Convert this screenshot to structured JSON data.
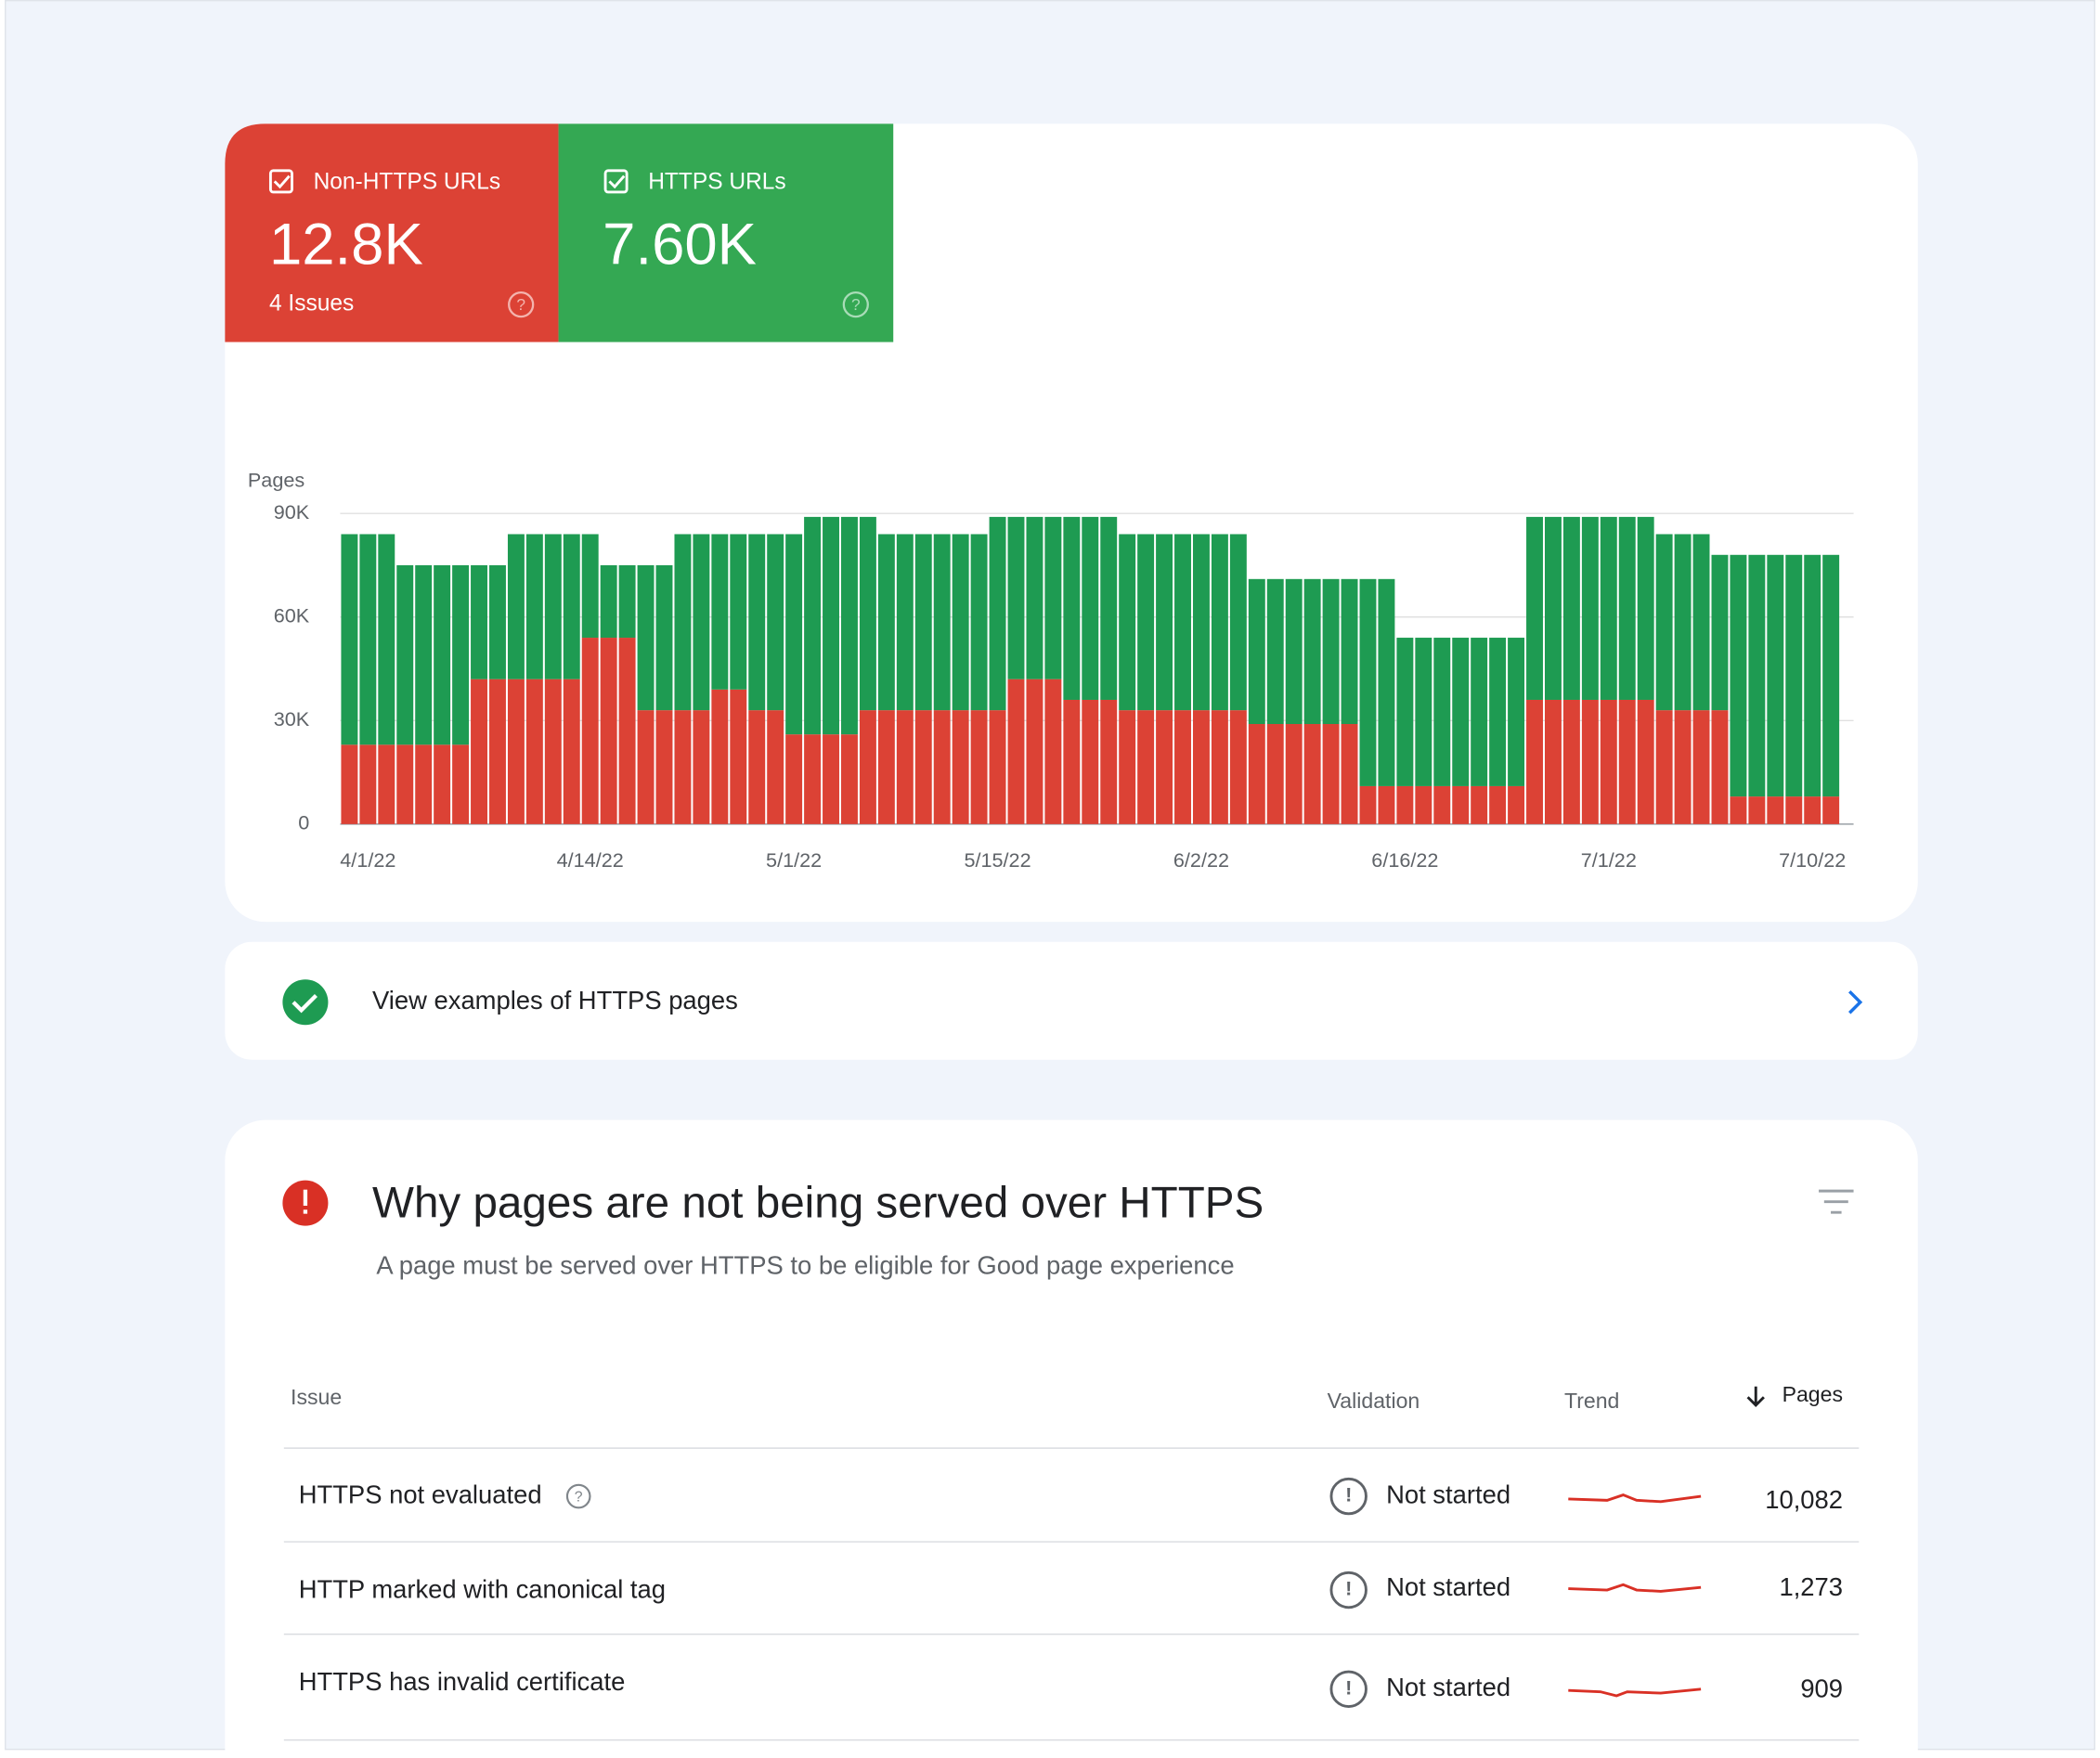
{
  "summary": [
    {
      "value": "12.8K",
      "issues": "4 Issues"
    },
    {
      "value": "7.60K"
    }
  ],
  "chart_data": {
    "type": "stacked-bar",
    "y_label": "Pages",
    "categories": [
      null,
      "4/1/22",
      null,
      null,
      null,
      null,
      null,
      null,
      null,
      null,
      null,
      null,
      null,
      "4/14/22",
      null,
      null,
      null,
      null,
      null,
      null,
      null,
      null,
      null,
      null,
      "5/1/22",
      null,
      null,
      null,
      null,
      null,
      null,
      null,
      null,
      null,
      null,
      "5/15/22",
      null,
      null,
      null,
      null,
      null,
      null,
      null,
      null,
      null,
      null,
      "6/2/22",
      null,
      null,
      null,
      null,
      null,
      null,
      null,
      null,
      null,
      null,
      "6/16/22",
      null,
      null,
      null,
      null,
      null,
      null,
      null,
      null,
      null,
      null,
      "7/1/22",
      null,
      null,
      null,
      null,
      null,
      null,
      null,
      null,
      null,
      null,
      "7/10/22",
      null
    ],
    "series": [
      {
        "name": "Non-HTTPS URLs",
        "color": "#dc4235",
        "values": [
          23000,
          23000,
          23000,
          23000,
          23000,
          23000,
          23000,
          42000,
          42000,
          42000,
          42000,
          42000,
          42000,
          54000,
          54000,
          54000,
          33000,
          33000,
          33000,
          33000,
          39000,
          39000,
          33000,
          33000,
          26000,
          26000,
          26000,
          26000,
          33000,
          33000,
          33000,
          33000,
          33000,
          33000,
          33000,
          33000,
          42000,
          42000,
          42000,
          36000,
          36000,
          36000,
          33000,
          33000,
          33000,
          33000,
          33000,
          33000,
          33000,
          29000,
          29000,
          29000,
          29000,
          29000,
          29000,
          11000,
          11000,
          11000,
          11000,
          11000,
          11000,
          11000,
          11000,
          11000,
          36000,
          36000,
          36000,
          36000,
          36000,
          36000,
          36000,
          33000,
          33000,
          33000,
          33000,
          8000,
          8000,
          8000,
          8000,
          8000,
          8000
        ]
      },
      {
        "name": "HTTPS URLs",
        "color": "#1e9b52",
        "values": [
          61000,
          61000,
          61000,
          52000,
          52000,
          52000,
          52000,
          33000,
          33000,
          42000,
          42000,
          42000,
          42000,
          30000,
          21000,
          21000,
          42000,
          42000,
          51000,
          51000,
          45000,
          45000,
          51000,
          51000,
          58000,
          63000,
          63000,
          63000,
          56000,
          51000,
          51000,
          51000,
          51000,
          51000,
          51000,
          56000,
          47000,
          47000,
          47000,
          53000,
          53000,
          53000,
          51000,
          51000,
          51000,
          51000,
          51000,
          51000,
          51000,
          42000,
          42000,
          42000,
          42000,
          42000,
          42000,
          60000,
          60000,
          43000,
          43000,
          43000,
          43000,
          43000,
          43000,
          43000,
          53000,
          53000,
          53000,
          53000,
          53000,
          53000,
          53000,
          51000,
          51000,
          51000,
          45000,
          70000,
          70000,
          70000,
          70000,
          70000,
          70000
        ]
      }
    ],
    "ylim": [
      0,
      90000
    ],
    "yticks": [
      0,
      {
        "value": 30000,
        "label": "30K"
      },
      {
        "value": 60000,
        "label": "60K"
      },
      {
        "value": 90000,
        "label": "90K"
      }
    ],
    "grid": true
  },
  "examples_link": "View examples of HTTPS pages",
  "issues_section": {
    "title": "Why pages are not being served over HTTPS",
    "subtitle": "A page must be served over HTTPS to be eligible for Good page experience",
    "table": {
      "headers": [
        "Issue",
        "Validation",
        "Trend",
        "Pages"
      ],
      "rows": [
        [
          "HTTPS not evaluated",
          "Not started",
          "10,082"
        ],
        [
          "HTTP marked with canonical tag",
          "Not started",
          "1,273"
        ],
        [
          "HTTPS has invalid certificate",
          "Not started",
          "909"
        ]
      ]
    }
  }
}
